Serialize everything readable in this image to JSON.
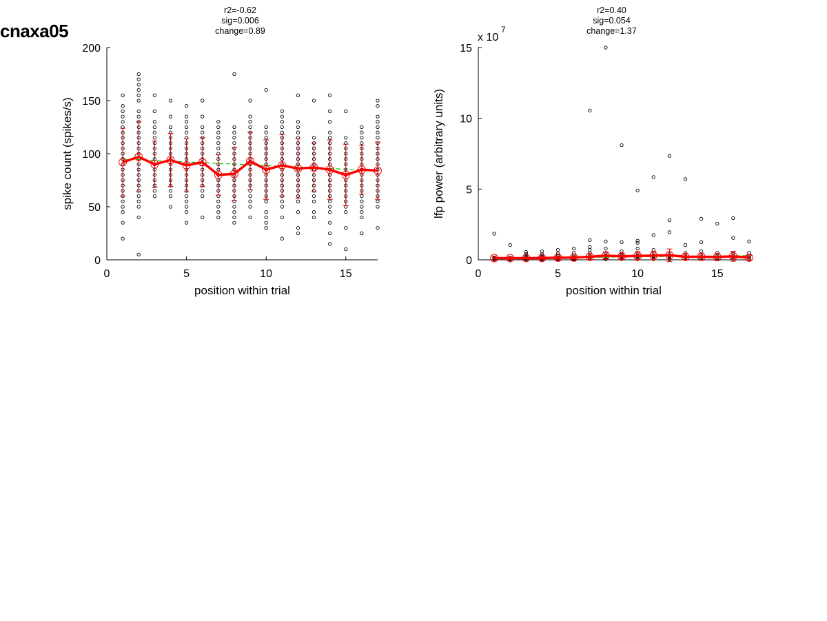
{
  "figure": {
    "title": "cnaxa05"
  },
  "colors": {
    "axis": "#000000",
    "points": "#000000",
    "mean_line": "#ff0000",
    "error_bars": "#cc0000",
    "mean_markers": "#ff0000",
    "fit_line": "#00cc00"
  },
  "chart_data": [
    {
      "type": "scatter",
      "stats": [
        "r2=-0.62",
        "sig=0.006",
        "change=0.89"
      ],
      "xlabel": "position within trial",
      "ylabel": "spike count (spikes/s)",
      "xlim": [
        0,
        17
      ],
      "ylim": [
        0,
        200
      ],
      "xticks": [
        0,
        5,
        10,
        15
      ],
      "yticks": [
        0,
        50,
        100,
        150,
        200
      ],
      "exponent_label": "",
      "grid": false,
      "x": [
        1,
        2,
        3,
        4,
        5,
        6,
        7,
        8,
        9,
        10,
        11,
        12,
        13,
        14,
        15,
        16,
        17
      ],
      "mean": [
        92,
        97,
        90,
        94,
        89,
        92,
        80,
        81,
        93,
        85,
        89,
        86,
        87,
        85,
        80,
        85,
        84
      ],
      "error": [
        32,
        33,
        22,
        25,
        25,
        23,
        19,
        25,
        27,
        28,
        29,
        28,
        23,
        28,
        29,
        23,
        27
      ],
      "trend": {
        "x": [
          1,
          17
        ],
        "y": [
          95,
          84
        ]
      },
      "points": [
        [
          1,
          [
            20,
            35,
            45,
            50,
            55,
            60,
            65,
            70,
            75,
            80,
            85,
            90,
            95,
            100,
            105,
            110,
            115,
            120,
            125,
            130,
            135,
            140,
            145,
            155
          ]
        ],
        [
          2,
          [
            5,
            40,
            50,
            55,
            60,
            65,
            70,
            75,
            80,
            85,
            90,
            95,
            100,
            105,
            110,
            115,
            120,
            125,
            130,
            135,
            140,
            150,
            155,
            160,
            165,
            170,
            175
          ]
        ],
        [
          3,
          [
            60,
            65,
            70,
            75,
            80,
            85,
            90,
            95,
            100,
            105,
            110,
            115,
            120,
            125,
            130,
            140,
            155
          ]
        ],
        [
          4,
          [
            50,
            60,
            65,
            70,
            75,
            80,
            85,
            90,
            95,
            100,
            105,
            110,
            115,
            120,
            125,
            135,
            150
          ]
        ],
        [
          5,
          [
            35,
            45,
            50,
            55,
            60,
            65,
            70,
            75,
            80,
            85,
            90,
            95,
            100,
            105,
            110,
            115,
            120,
            125,
            130,
            135,
            145
          ]
        ],
        [
          6,
          [
            40,
            60,
            65,
            70,
            75,
            80,
            85,
            90,
            95,
            100,
            105,
            110,
            115,
            120,
            125,
            135,
            150
          ]
        ],
        [
          7,
          [
            40,
            45,
            50,
            55,
            60,
            65,
            70,
            75,
            80,
            85,
            90,
            95,
            100,
            105,
            110,
            115,
            120,
            125,
            130
          ]
        ],
        [
          8,
          [
            35,
            40,
            45,
            50,
            55,
            60,
            65,
            70,
            75,
            80,
            85,
            90,
            95,
            100,
            105,
            110,
            115,
            120,
            125,
            175
          ]
        ],
        [
          9,
          [
            40,
            50,
            55,
            60,
            65,
            70,
            75,
            80,
            85,
            90,
            95,
            100,
            105,
            110,
            115,
            120,
            125,
            130,
            135,
            150
          ]
        ],
        [
          10,
          [
            30,
            35,
            40,
            45,
            55,
            60,
            65,
            70,
            75,
            80,
            85,
            90,
            95,
            100,
            105,
            110,
            115,
            120,
            125,
            160
          ]
        ],
        [
          11,
          [
            20,
            40,
            50,
            55,
            60,
            65,
            70,
            75,
            80,
            85,
            90,
            95,
            100,
            105,
            110,
            115,
            120,
            125,
            130,
            135,
            140
          ]
        ],
        [
          12,
          [
            25,
            30,
            45,
            55,
            60,
            65,
            70,
            75,
            80,
            85,
            90,
            95,
            100,
            105,
            110,
            115,
            120,
            125,
            130,
            155
          ]
        ],
        [
          13,
          [
            40,
            45,
            55,
            60,
            65,
            70,
            75,
            80,
            85,
            90,
            95,
            100,
            105,
            110,
            115,
            150
          ]
        ],
        [
          14,
          [
            15,
            25,
            35,
            45,
            50,
            55,
            60,
            65,
            70,
            75,
            80,
            85,
            90,
            95,
            100,
            105,
            110,
            115,
            120,
            130,
            140,
            155
          ]
        ],
        [
          15,
          [
            10,
            30,
            45,
            50,
            55,
            60,
            65,
            70,
            75,
            80,
            85,
            90,
            95,
            100,
            105,
            110,
            115,
            140
          ]
        ],
        [
          16,
          [
            25,
            40,
            45,
            50,
            55,
            60,
            65,
            70,
            75,
            80,
            85,
            90,
            95,
            100,
            105,
            110,
            115,
            120,
            125
          ]
        ],
        [
          17,
          [
            30,
            50,
            55,
            60,
            65,
            70,
            75,
            80,
            85,
            90,
            95,
            100,
            105,
            110,
            115,
            120,
            125,
            130,
            135,
            145,
            150
          ]
        ]
      ]
    },
    {
      "type": "scatter",
      "stats": [
        "r2=0.40",
        "sig=0.054",
        "change=1.37"
      ],
      "xlabel": "position within trial",
      "ylabel": "lfp power (arbitrary units)",
      "xlim": [
        0,
        17
      ],
      "ylim": [
        0,
        15
      ],
      "xticks": [
        0,
        5,
        10,
        15
      ],
      "yticks": [
        0,
        5,
        10,
        15
      ],
      "exponent_label": "x 10",
      "exponent_power": "7",
      "grid": false,
      "x": [
        1,
        2,
        3,
        4,
        5,
        6,
        7,
        8,
        9,
        10,
        11,
        12,
        13,
        14,
        15,
        16,
        17
      ],
      "mean": [
        0.12,
        0.12,
        0.12,
        0.13,
        0.15,
        0.16,
        0.22,
        0.3,
        0.25,
        0.28,
        0.3,
        0.32,
        0.22,
        0.22,
        0.2,
        0.25,
        0.15
      ],
      "error": [
        0.15,
        0.1,
        0.08,
        0.1,
        0.12,
        0.12,
        0.2,
        0.25,
        0.2,
        0.3,
        0.3,
        0.45,
        0.2,
        0.25,
        0.25,
        0.35,
        0.15
      ],
      "trend": {
        "x": [
          1,
          17
        ],
        "y": [
          0.1,
          0.3
        ]
      },
      "points": [
        [
          1,
          [
            0.02,
            0.05,
            0.08,
            0.1,
            0.12,
            0.15,
            1.85
          ]
        ],
        [
          2,
          [
            0.02,
            0.05,
            0.08,
            0.1,
            0.15,
            1.05
          ]
        ],
        [
          3,
          [
            0.02,
            0.05,
            0.1,
            0.15,
            0.25,
            0.4,
            0.55
          ]
        ],
        [
          4,
          [
            0.02,
            0.05,
            0.1,
            0.15,
            0.25,
            0.4,
            0.6
          ]
        ],
        [
          5,
          [
            0.02,
            0.05,
            0.1,
            0.15,
            0.3,
            0.45,
            0.7
          ]
        ],
        [
          6,
          [
            0.02,
            0.05,
            0.1,
            0.2,
            0.3,
            0.5,
            0.8
          ]
        ],
        [
          7,
          [
            0.05,
            0.1,
            0.2,
            0.3,
            0.5,
            0.7,
            0.9,
            1.4,
            10.55
          ]
        ],
        [
          8,
          [
            0.05,
            0.1,
            0.2,
            0.3,
            0.5,
            0.8,
            1.3,
            15.0
          ]
        ],
        [
          9,
          [
            0.05,
            0.1,
            0.2,
            0.3,
            0.4,
            0.6,
            1.25,
            8.1
          ]
        ],
        [
          10,
          [
            0.05,
            0.1,
            0.2,
            0.3,
            0.5,
            0.8,
            1.2,
            1.35,
            4.9
          ]
        ],
        [
          11,
          [
            0.05,
            0.1,
            0.2,
            0.3,
            0.5,
            0.7,
            1.75,
            5.85
          ]
        ],
        [
          12,
          [
            0.05,
            0.1,
            0.2,
            0.3,
            0.5,
            1.95,
            2.8,
            7.35
          ]
        ],
        [
          13,
          [
            0.05,
            0.1,
            0.2,
            0.3,
            0.5,
            1.05,
            5.7
          ]
        ],
        [
          14,
          [
            0.05,
            0.1,
            0.2,
            0.3,
            0.6,
            1.25,
            2.9
          ]
        ],
        [
          15,
          [
            0.05,
            0.1,
            0.2,
            0.3,
            0.5,
            2.55
          ]
        ],
        [
          16,
          [
            0.05,
            0.1,
            0.2,
            0.3,
            0.5,
            1.55,
            2.95
          ]
        ],
        [
          17,
          [
            0.05,
            0.1,
            0.2,
            0.3,
            0.5,
            1.3
          ]
        ]
      ]
    }
  ]
}
